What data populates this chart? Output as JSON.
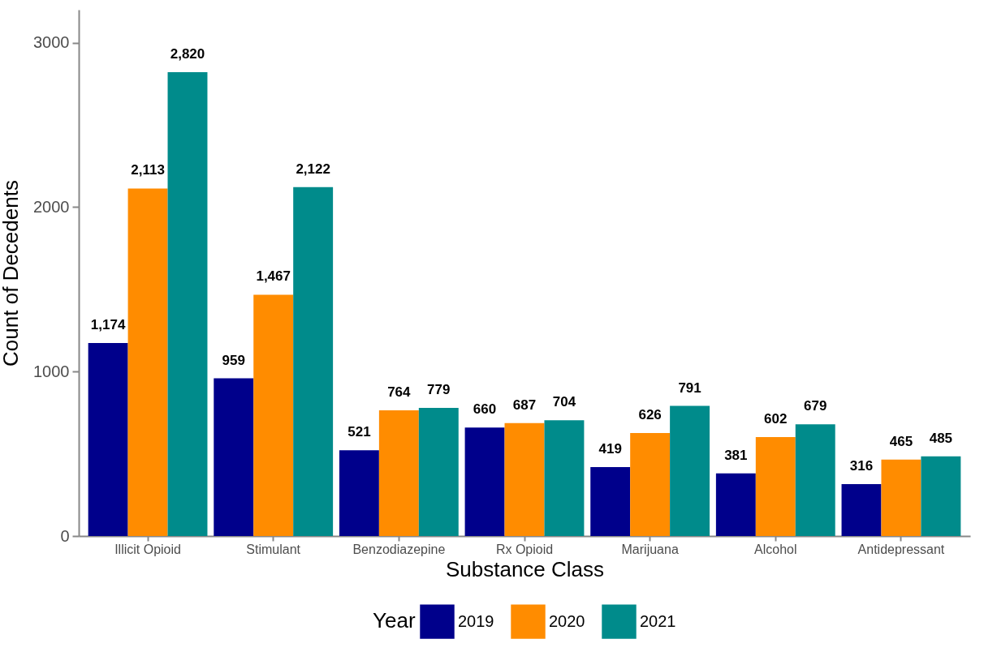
{
  "chart_data": {
    "type": "bar",
    "xlabel": "Substance Class",
    "ylabel": "Count of Decedents",
    "legend_title": "Year",
    "categories": [
      "Illicit Opioid",
      "Stimulant",
      "Benzodiazepine",
      "Rx Opioid",
      "Marijuana",
      "Alcohol",
      "Antidepressant"
    ],
    "series": [
      {
        "name": "2019",
        "color": "#00008b",
        "values": [
          1174,
          959,
          521,
          660,
          419,
          381,
          316
        ],
        "value_labels": [
          "1,174",
          "959",
          "521",
          "660",
          "419",
          "381",
          "316"
        ]
      },
      {
        "name": "2020",
        "color": "#ff8c00",
        "values": [
          2113,
          1467,
          764,
          687,
          626,
          602,
          465
        ],
        "value_labels": [
          "2,113",
          "1,467",
          "764",
          "687",
          "626",
          "602",
          "465"
        ]
      },
      {
        "name": "2021",
        "color": "#008b8b",
        "values": [
          2820,
          2122,
          779,
          704,
          791,
          679,
          485
        ],
        "value_labels": [
          "2,820",
          "2,122",
          "779",
          "704",
          "791",
          "679",
          "485"
        ]
      }
    ],
    "ylim": [
      0,
      3200
    ],
    "yticks": [
      0,
      1000,
      2000,
      3000
    ],
    "grid": false,
    "legend": "bottom"
  }
}
